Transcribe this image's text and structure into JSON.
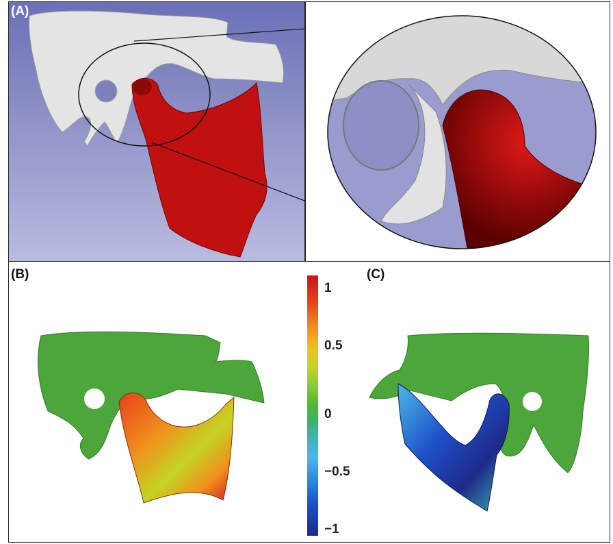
{
  "panels": {
    "a": {
      "label": "(A)"
    },
    "b": {
      "label": "(B)"
    },
    "c": {
      "label": "(C)"
    }
  },
  "colorbar": {
    "ticks": [
      "1",
      "0.5",
      "0",
      "−0.5",
      "−1"
    ],
    "colors": [
      "#c8141b",
      "#ecc21c",
      "#52b43c",
      "#4ab8e8",
      "#1e2a8a"
    ]
  }
}
